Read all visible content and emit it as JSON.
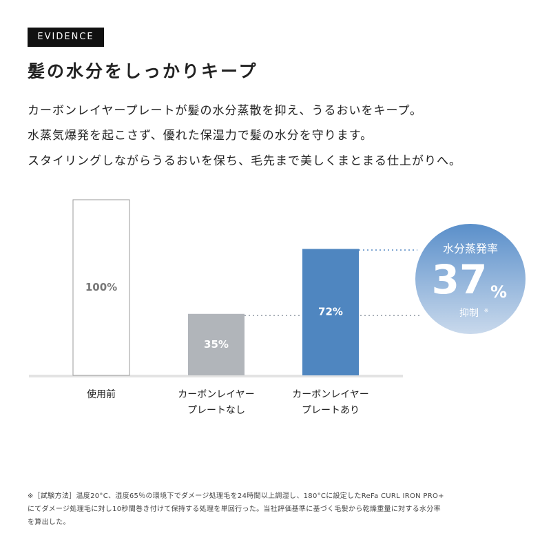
{
  "header": {
    "tag": "EVIDENCE",
    "title": "髪の水分をしっかりキープ",
    "lines": [
      "カーボンレイヤープレートが髪の水分蒸散を抑え、うるおいをキープ。",
      "水蒸気爆発を起こさず、優れた保湿力で髪の水分を守ります。",
      "スタイリングしながらうるおいを保ち、毛先まで美しくまとまる仕上がりへ。"
    ]
  },
  "chart_data": {
    "type": "bar",
    "categories": [
      "使用前",
      "カーボンレイヤー\nプレートなし",
      "カーボンレイヤー\nプレートあり"
    ],
    "values": [
      100,
      35,
      72
    ],
    "value_labels": [
      "100%",
      "35%",
      "72%"
    ],
    "colors": [
      "#ffffff",
      "#b1b5ba",
      "#4f86c0"
    ],
    "ylim": [
      0,
      100
    ],
    "annotation": {
      "title": "水分蒸発率",
      "value": 37,
      "unit": "%",
      "caption": "抑制",
      "mark": "※"
    }
  },
  "footnote": [
    "※［試験方法］温度20°C、湿度65％の環境下でダメージ処理毛を24時間以上調湿し、180°Cに設定したReFa CURL IRON PRO+",
    "にてダメージ処理毛に対し10秒間巻き付けて保持する処理を単回行った。当社評価基準に基づく毛髪から乾燥重量に対する水分率",
    "を算出した。"
  ]
}
